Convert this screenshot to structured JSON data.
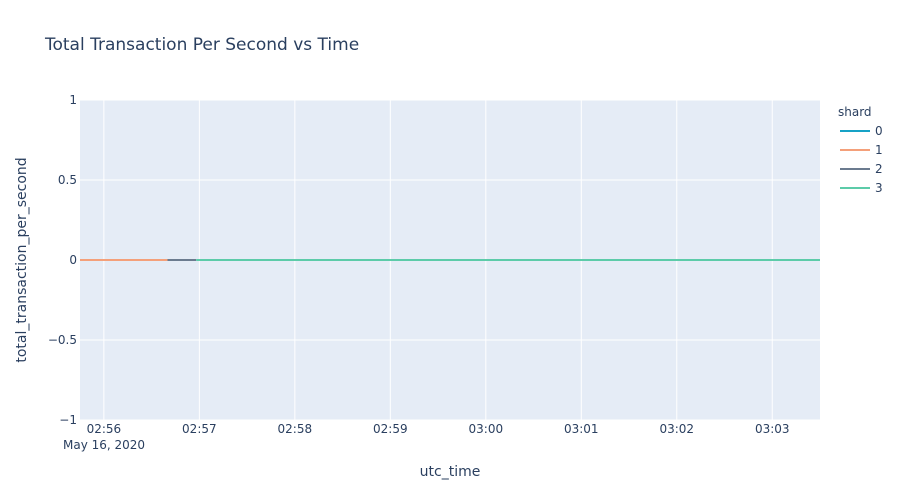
{
  "chart_data": {
    "type": "line",
    "title": "Total Transaction Per Second vs Time",
    "xlabel": "utc_time",
    "ylabel": "total_transaction_per_second",
    "x_date_label": "May 16, 2020",
    "xlim": [
      "02:55:45",
      "03:03:30"
    ],
    "ylim": [
      -1,
      1
    ],
    "x_ticks": [
      "02:56",
      "02:57",
      "02:58",
      "02:59",
      "03:00",
      "03:01",
      "03:02",
      "03:03"
    ],
    "y_ticks": [
      {
        "value": 1,
        "label": "1"
      },
      {
        "value": 0.5,
        "label": "0.5"
      },
      {
        "value": 0,
        "label": "0"
      },
      {
        "value": -0.5,
        "label": "−0.5"
      },
      {
        "value": -1,
        "label": "−1"
      }
    ],
    "grid": true,
    "legend": {
      "title": "shard",
      "position": "right"
    },
    "series": [
      {
        "name": "0",
        "color": "#17a2c6",
        "x": [
          "02:55:45",
          "02:56:40"
        ],
        "y": [
          0,
          0
        ]
      },
      {
        "name": "1",
        "color": "#f4a07a",
        "x": [
          "02:55:45",
          "02:56:40"
        ],
        "y": [
          0,
          0
        ]
      },
      {
        "name": "2",
        "color": "#6b7b8f",
        "x": [
          "02:56:40",
          "02:56:58"
        ],
        "y": [
          0,
          0
        ]
      },
      {
        "name": "3",
        "color": "#5ccba9",
        "x": [
          "02:56:58",
          "03:03:30"
        ],
        "y": [
          0,
          0
        ]
      }
    ]
  }
}
